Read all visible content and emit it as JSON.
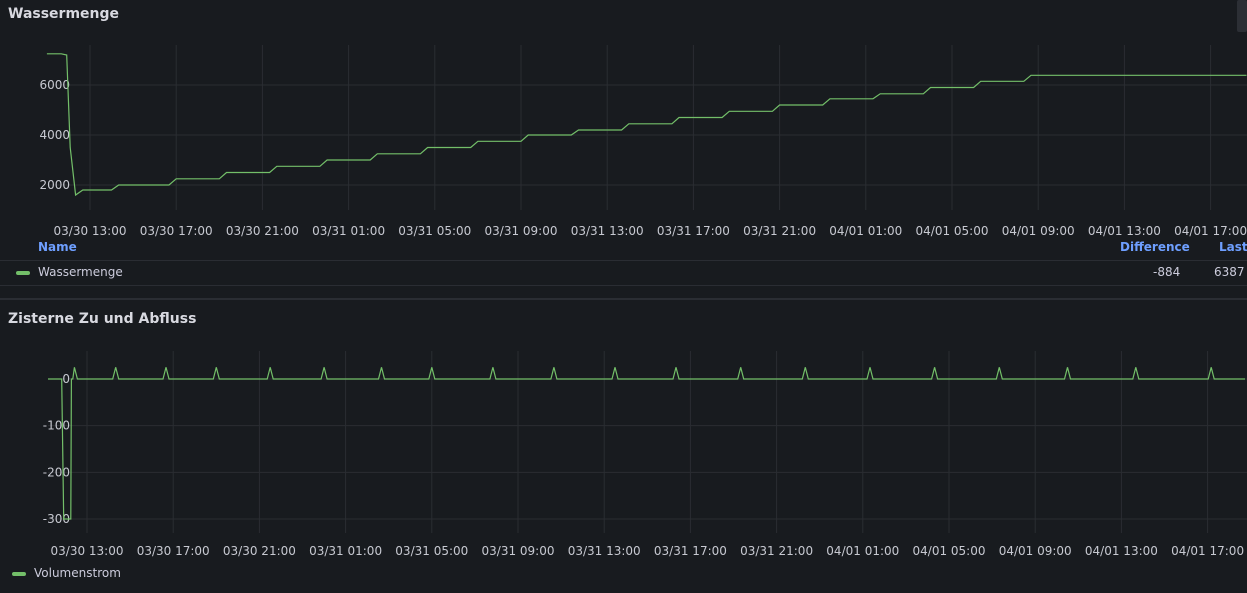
{
  "panels": {
    "top": {
      "title": "Wassermenge",
      "legend": {
        "columns": {
          "name": "Name",
          "difference": "Difference",
          "last": "Last"
        },
        "rows": [
          {
            "name": "Wassermenge",
            "difference": "-884",
            "last": "6387"
          }
        ]
      }
    },
    "bottom": {
      "title": "Zisterne Zu und Abfluss",
      "legend": {
        "items": [
          {
            "name": "Volumenstrom"
          }
        ]
      }
    }
  },
  "chart_data": [
    {
      "type": "line",
      "title": "Wassermenge",
      "xlabel": "",
      "ylabel": "",
      "x_tick_labels": [
        "03/30 13:00",
        "03/30 17:00",
        "03/30 21:00",
        "03/31 01:00",
        "03/31 05:00",
        "03/31 09:00",
        "03/31 13:00",
        "03/31 17:00",
        "03/31 21:00",
        "04/01 01:00",
        "04/01 05:00",
        "04/01 09:00",
        "04/01 13:00",
        "04/01 17:00"
      ],
      "y_tick_labels": [
        "2000",
        "4000",
        "6000"
      ],
      "ylim": [
        1000,
        7600
      ],
      "grid": true,
      "series": [
        {
          "name": "Wassermenge",
          "color": "#73bf69",
          "x": [
            "03/30 11:00",
            "03/30 11:40",
            "03/30 11:55",
            "03/30 12:05",
            "03/30 12:20",
            "03/30 12:40",
            "03/30 14:00",
            "03/30 14:20",
            "03/30 16:40",
            "03/30 17:00",
            "03/30 19:00",
            "03/30 19:20",
            "03/30 21:20",
            "03/30 21:40",
            "03/30 23:40",
            "03/31 00:00",
            "03/31 02:00",
            "03/31 02:20",
            "03/31 04:20",
            "03/31 04:40",
            "03/31 06:40",
            "03/31 07:00",
            "03/31 09:00",
            "03/31 09:20",
            "03/31 11:20",
            "03/31 11:40",
            "03/31 13:40",
            "03/31 14:00",
            "03/31 16:00",
            "03/31 16:20",
            "03/31 18:20",
            "03/31 18:40",
            "03/31 20:40",
            "03/31 21:00",
            "03/31 23:00",
            "03/31 23:20",
            "04/01 01:20",
            "04/01 01:40",
            "04/01 03:40",
            "04/01 04:00",
            "04/01 06:00",
            "04/01 06:20",
            "04/01 08:20",
            "04/01 08:40",
            "04/01 10:40",
            "04/01 11:00",
            "04/01 13:00",
            "04/01 13:20",
            "04/01 15:20",
            "04/01 15:40",
            "04/01 17:40",
            "04/01 18:00",
            "04/01 18:40"
          ],
          "y": [
            7250,
            7250,
            7200,
            3500,
            1600,
            1800,
            1800,
            2000,
            2000,
            2250,
            2250,
            2500,
            2500,
            2750,
            2750,
            3000,
            3000,
            3250,
            3250,
            3500,
            3500,
            3750,
            3750,
            4000,
            4000,
            4200,
            4200,
            4450,
            4450,
            4700,
            4700,
            4950,
            4950,
            5200,
            5200,
            5450,
            5450,
            5650,
            5650,
            5900,
            5900,
            6150,
            6150,
            6387,
            6387,
            6387,
            6387,
            6387,
            6387,
            6387,
            6387,
            6387,
            6387
          ]
        }
      ]
    },
    {
      "type": "line",
      "title": "Zisterne Zu und Abfluss",
      "xlabel": "",
      "ylabel": "",
      "x_tick_labels": [
        "03/30 13:00",
        "03/30 17:00",
        "03/30 21:00",
        "03/31 01:00",
        "03/31 05:00",
        "03/31 09:00",
        "03/31 13:00",
        "03/31 17:00",
        "03/31 21:00",
        "04/01 01:00",
        "04/01 05:00",
        "04/01 09:00",
        "04/01 13:00",
        "04/01 17:00"
      ],
      "y_tick_labels": [
        "0",
        "-100",
        "-200",
        "-300"
      ],
      "ylim": [
        -330,
        60
      ],
      "grid": true,
      "series": [
        {
          "name": "Volumenstrom",
          "color": "#73bf69",
          "baseline": 0,
          "dip": {
            "from": "03/30 11:55",
            "to": "03/30 12:15",
            "value": -300
          },
          "spike_times": [
            "03/30 12:25",
            "03/30 14:20",
            "03/30 16:40",
            "03/30 19:00",
            "03/30 21:30",
            "03/31 00:00",
            "03/31 02:40",
            "03/31 05:00",
            "03/31 07:50",
            "03/31 10:40",
            "03/31 13:30",
            "03/31 16:20",
            "03/31 19:20",
            "03/31 22:20",
            "04/01 01:20",
            "04/01 04:20",
            "04/01 07:20",
            "04/01 10:30",
            "04/01 13:40",
            "04/01 17:10"
          ],
          "spike_value": 25
        }
      ]
    }
  ]
}
